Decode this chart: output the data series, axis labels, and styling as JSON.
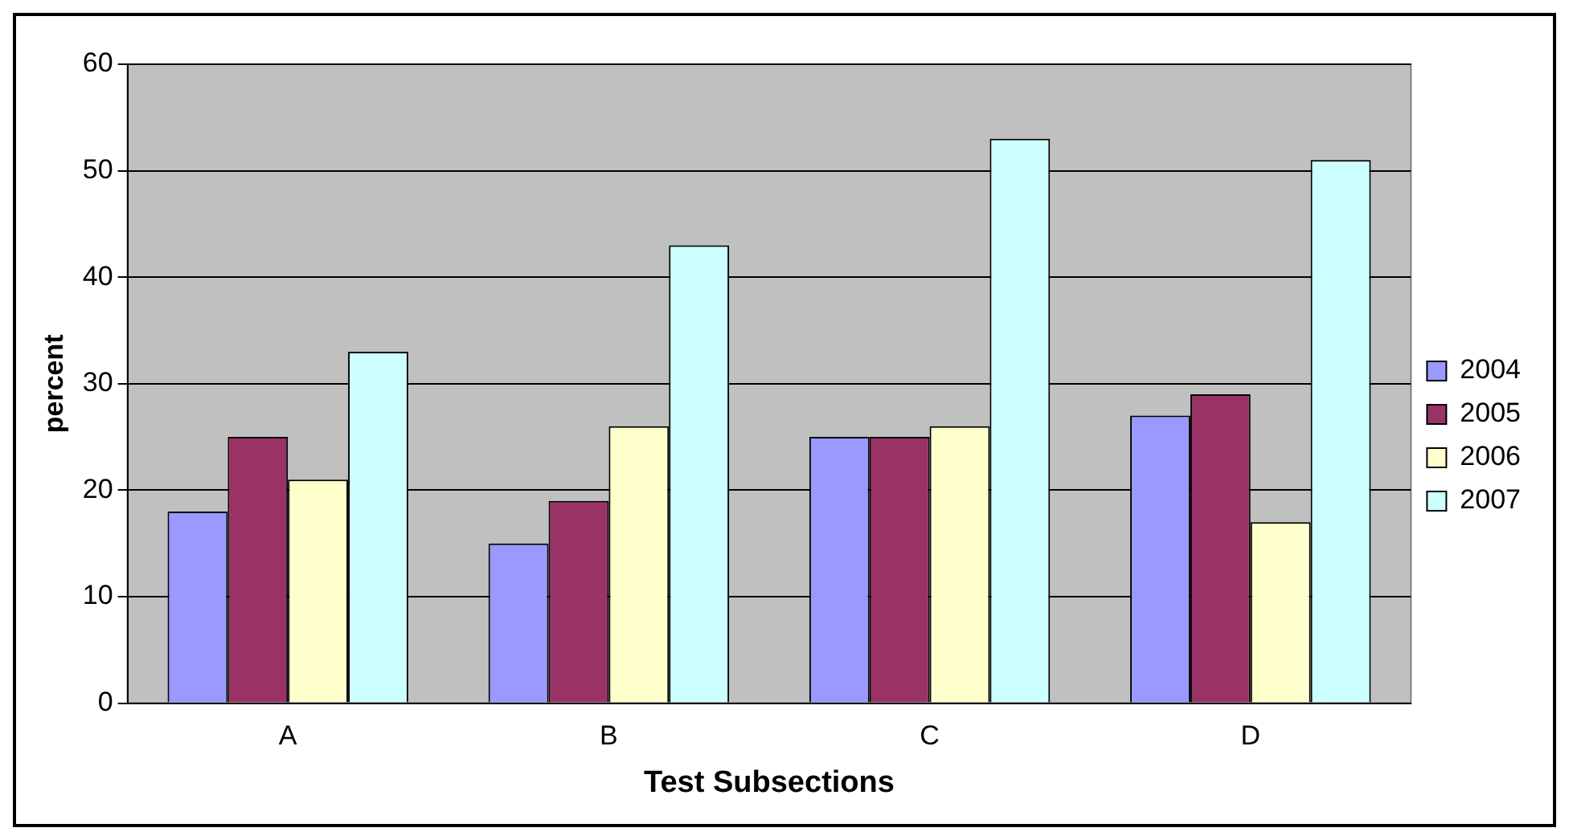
{
  "chart_data": {
    "type": "bar",
    "xlabel": "Test Subsections",
    "ylabel": "percent",
    "categories": [
      "A",
      "B",
      "C",
      "D"
    ],
    "series": [
      {
        "name": "2004",
        "color": "#9999ff",
        "values": [
          18,
          15,
          25,
          27
        ]
      },
      {
        "name": "2005",
        "color": "#993366",
        "values": [
          25,
          19,
          25,
          29
        ]
      },
      {
        "name": "2006",
        "color": "#ffffcc",
        "values": [
          21,
          26,
          26,
          17
        ]
      },
      {
        "name": "2007",
        "color": "#ccffff",
        "values": [
          33,
          43,
          53,
          51
        ]
      }
    ],
    "ylim": [
      0,
      60
    ],
    "yticks": [
      0,
      10,
      20,
      30,
      40,
      50,
      60
    ],
    "grid": "y",
    "legend": "right"
  }
}
